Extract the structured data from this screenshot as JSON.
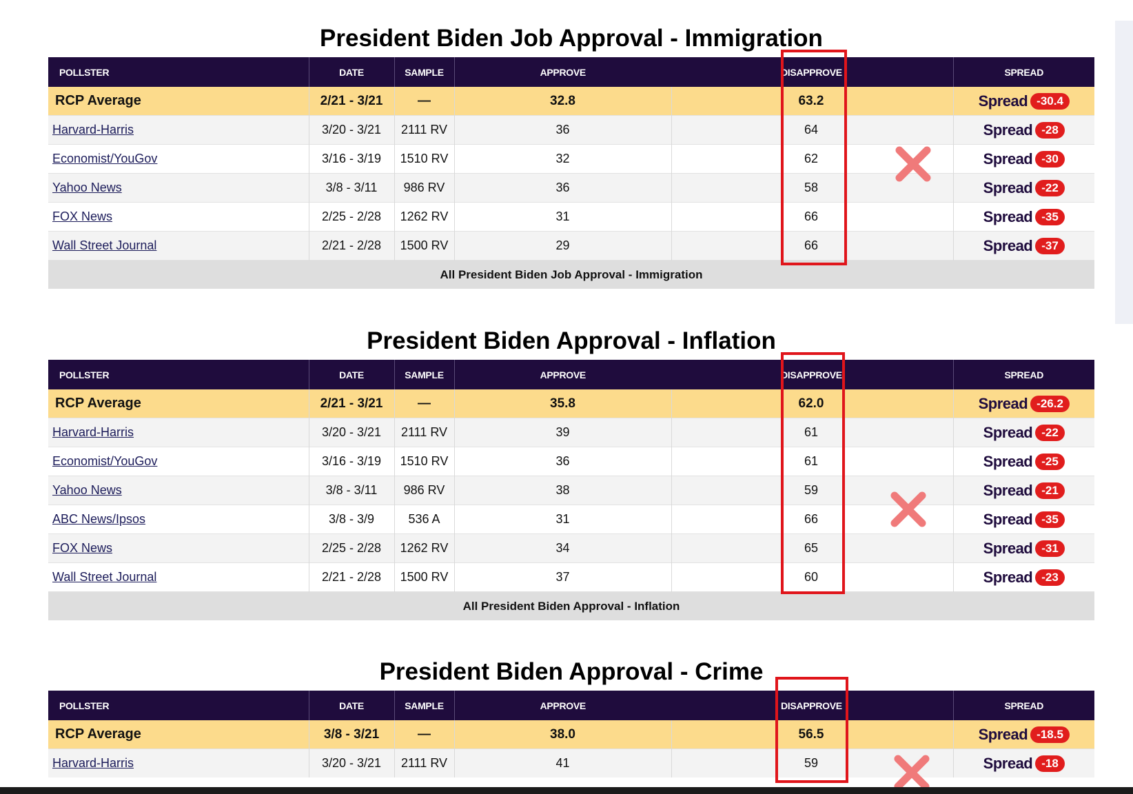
{
  "headers": [
    "POLLSTER",
    "DATE",
    "SAMPLE",
    "APPROVE",
    "",
    "DISAPPROVE",
    "",
    "SPREAD"
  ],
  "spread_word": "Spread",
  "colors": {
    "header_bg": "#1f0c3d",
    "average_row": "#fcdb8c",
    "spread_badge": "#e11d1d",
    "highlight_box": "#e0151b"
  },
  "sections": [
    {
      "title": "President Biden Job Approval - Immigration",
      "average": {
        "pollster": "RCP Average",
        "date": "2/21 - 3/21",
        "sample": "—",
        "approve": "32.8",
        "disapprove": "63.2",
        "spread": "-30.4"
      },
      "rows": [
        {
          "pollster": "Harvard-Harris",
          "date": "3/20 - 3/21",
          "sample": "2111 RV",
          "approve": "36",
          "disapprove": "64",
          "spread": "-28"
        },
        {
          "pollster": "Economist/YouGov",
          "date": "3/16 - 3/19",
          "sample": "1510 RV",
          "approve": "32",
          "disapprove": "62",
          "spread": "-30"
        },
        {
          "pollster": "Yahoo News",
          "date": "3/8 - 3/11",
          "sample": "986 RV",
          "approve": "36",
          "disapprove": "58",
          "spread": "-22"
        },
        {
          "pollster": "FOX News",
          "date": "2/25 - 2/28",
          "sample": "1262 RV",
          "approve": "31",
          "disapprove": "66",
          "spread": "-35"
        },
        {
          "pollster": "Wall Street Journal",
          "date": "2/21 - 2/28",
          "sample": "1500 RV",
          "approve": "29",
          "disapprove": "66",
          "spread": "-37"
        }
      ],
      "footer": "All President Biden Job Approval - Immigration"
    },
    {
      "title": "President Biden Approval - Inflation",
      "average": {
        "pollster": "RCP Average",
        "date": "2/21 - 3/21",
        "sample": "—",
        "approve": "35.8",
        "disapprove": "62.0",
        "spread": "-26.2"
      },
      "rows": [
        {
          "pollster": "Harvard-Harris",
          "date": "3/20 - 3/21",
          "sample": "2111 RV",
          "approve": "39",
          "disapprove": "61",
          "spread": "-22"
        },
        {
          "pollster": "Economist/YouGov",
          "date": "3/16 - 3/19",
          "sample": "1510 RV",
          "approve": "36",
          "disapprove": "61",
          "spread": "-25"
        },
        {
          "pollster": "Yahoo News",
          "date": "3/8 - 3/11",
          "sample": "986 RV",
          "approve": "38",
          "disapprove": "59",
          "spread": "-21"
        },
        {
          "pollster": "ABC News/Ipsos",
          "date": "3/8 - 3/9",
          "sample": "536 A",
          "approve": "31",
          "disapprove": "66",
          "spread": "-35"
        },
        {
          "pollster": "FOX News",
          "date": "2/25 - 2/28",
          "sample": "1262 RV",
          "approve": "34",
          "disapprove": "65",
          "spread": "-31"
        },
        {
          "pollster": "Wall Street Journal",
          "date": "2/21 - 2/28",
          "sample": "1500 RV",
          "approve": "37",
          "disapprove": "60",
          "spread": "-23"
        }
      ],
      "footer": "All President Biden Approval - Inflation"
    },
    {
      "title": "President Biden Approval - Crime",
      "average": {
        "pollster": "RCP Average",
        "date": "3/8 - 3/21",
        "sample": "—",
        "approve": "38.0",
        "disapprove": "56.5",
        "spread": "-18.5"
      },
      "rows": [
        {
          "pollster": "Harvard-Harris",
          "date": "3/20 - 3/21",
          "sample": "2111 RV",
          "approve": "41",
          "disapprove": "59",
          "spread": "-18"
        }
      ],
      "footer": ""
    }
  ]
}
